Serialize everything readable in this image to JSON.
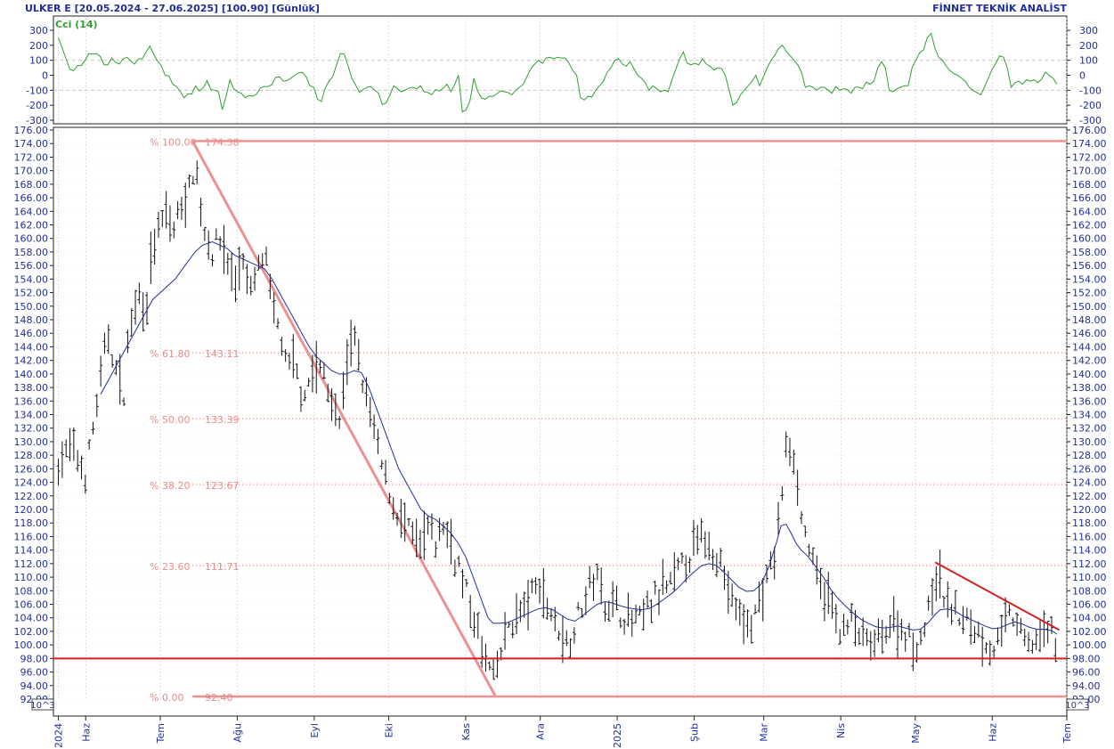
{
  "header": {
    "left": "ULKER E  [20.05.2024 - 27.06.2025]  [100.90]  [Günlük]",
    "right": "FİNNET TEKNİK ANALİST"
  },
  "indicator": {
    "label": "Cci (14)",
    "color": "#2ea12e",
    "ticks": [
      "300",
      "200",
      "100",
      "0",
      "-100",
      "-200",
      "-300"
    ],
    "tick_values": [
      300,
      200,
      100,
      0,
      -100,
      -200,
      -300
    ],
    "ylim": [
      -300,
      300
    ],
    "dashed_levels": [
      100,
      -100
    ],
    "values": [
      250,
      180,
      110,
      40,
      30,
      65,
      65,
      100,
      145,
      140,
      145,
      125,
      70,
      70,
      115,
      85,
      75,
      110,
      120,
      95,
      75,
      110,
      110,
      155,
      195,
      140,
      95,
      65,
      0,
      -5,
      -60,
      -75,
      -110,
      -150,
      -125,
      -125,
      -70,
      -105,
      -85,
      -35,
      -95,
      -100,
      -110,
      -230,
      -140,
      -30,
      -90,
      -110,
      -120,
      -150,
      -135,
      -140,
      -125,
      -85,
      -75,
      -75,
      -65,
      -15,
      -10,
      -40,
      -35,
      -20,
      0,
      15,
      20,
      -10,
      -70,
      -80,
      -160,
      -175,
      -85,
      -40,
      -10,
      70,
      145,
      140,
      65,
      -20,
      -65,
      -115,
      -95,
      -80,
      -75,
      -100,
      -120,
      -195,
      -185,
      -130,
      -70,
      -90,
      -110,
      -100,
      -85,
      -80,
      -90,
      -70,
      -110,
      -115,
      -130,
      -95,
      -105,
      -85,
      -60,
      -110,
      -60,
      0,
      -245,
      -230,
      -170,
      -20,
      -105,
      -150,
      -160,
      -140,
      -140,
      -125,
      -105,
      -110,
      -115,
      -130,
      -100,
      -80,
      -60,
      -5,
      45,
      75,
      100,
      80,
      115,
      120,
      110,
      120,
      115,
      115,
      80,
      30,
      0,
      -150,
      -165,
      -140,
      -145,
      -100,
      -70,
      -40,
      20,
      50,
      100,
      110,
      75,
      60,
      90,
      45,
      0,
      -20,
      -50,
      -100,
      -70,
      -90,
      -110,
      -100,
      -110,
      -30,
      40,
      110,
      155,
      80,
      70,
      80,
      70,
      110,
      75,
      60,
      35,
      50,
      45,
      0,
      -100,
      -200,
      -180,
      -130,
      -100,
      -70,
      -40,
      0,
      -70,
      -10,
      50,
      100,
      135,
      180,
      200,
      160,
      130,
      100,
      70,
      20,
      -80,
      -70,
      -80,
      -100,
      -80,
      -80,
      -100,
      -120,
      -75,
      -100,
      -90,
      -95,
      -120,
      -80,
      -80,
      -90,
      -45,
      -60,
      -40,
      50,
      90,
      50,
      -100,
      -110,
      -90,
      -80,
      -70,
      -70,
      50,
      100,
      150,
      170,
      250,
      280,
      180,
      120,
      100,
      60,
      30,
      10,
      0,
      -20,
      -40,
      -80,
      -100,
      -115,
      -130,
      -80,
      -20,
      40,
      80,
      130,
      120,
      50,
      -80,
      -50,
      -40,
      -60,
      -30,
      -40,
      -30,
      -50,
      -25,
      20,
      0,
      -20,
      -60
    ]
  },
  "price_axis": {
    "ticks": [
      "176.00",
      "174.00",
      "172.00",
      "170.00",
      "168.00",
      "166.00",
      "164.00",
      "162.00",
      "160.00",
      "158.00",
      "156.00",
      "154.00",
      "152.00",
      "150.00",
      "148.00",
      "146.00",
      "144.00",
      "142.00",
      "140.00",
      "138.00",
      "136.00",
      "134.00",
      "132.00",
      "130.00",
      "128.00",
      "126.00",
      "124.00",
      "122.00",
      "120.00",
      "118.00",
      "116.00",
      "114.00",
      "112.00",
      "110.00",
      "108.00",
      "106.00",
      "104.00",
      "102.00",
      "100.00",
      "98.00",
      "96.00",
      "94.00",
      "92.00"
    ],
    "scale_label": "10^3"
  },
  "time_axis": {
    "labels": [
      "2024",
      "Haz",
      "Tem",
      "Ağu",
      "Eyl",
      "Eki",
      "Kas",
      "Ara",
      "2025",
      "Şub",
      "Mar",
      "Nis",
      "May",
      "Haz",
      "Tem"
    ],
    "label_days": [
      0,
      11,
      41,
      72,
      103,
      133,
      164,
      194,
      225,
      256,
      284,
      315,
      345,
      376,
      406
    ]
  },
  "chart_data": {
    "type": "bar",
    "title": "ULKER E",
    "date_range": [
      "20.05.2024",
      "27.06.2025"
    ],
    "last_price": 100.9,
    "period": "Günlük",
    "ylim": [
      92,
      176
    ],
    "x_range_days": [
      -2,
      406
    ],
    "colors": {
      "price_bars": "#111111",
      "moving_average": "#1f2f9a",
      "fibonacci": "#ee9090",
      "support": "#d41f1f",
      "downtrend": "#d41f1f"
    },
    "price_path": [
      [
        0,
        127
      ],
      [
        5,
        129
      ],
      [
        11,
        125
      ],
      [
        14,
        132
      ],
      [
        17,
        139
      ],
      [
        20,
        146
      ],
      [
        23,
        141
      ],
      [
        26,
        136
      ],
      [
        29,
        148
      ],
      [
        32,
        152
      ],
      [
        35,
        150
      ],
      [
        38,
        158
      ],
      [
        41,
        162
      ],
      [
        44,
        163
      ],
      [
        47,
        161
      ],
      [
        50,
        166
      ],
      [
        53,
        167
      ],
      [
        55,
        172
      ],
      [
        58,
        162
      ],
      [
        62,
        158
      ],
      [
        65,
        160
      ],
      [
        68,
        157
      ],
      [
        71,
        153
      ],
      [
        74,
        158
      ],
      [
        77,
        151
      ],
      [
        80,
        155
      ],
      [
        83,
        158
      ],
      [
        86,
        149
      ],
      [
        89,
        147
      ],
      [
        92,
        140
      ],
      [
        95,
        142
      ],
      [
        98,
        137
      ],
      [
        101,
        139
      ],
      [
        104,
        141
      ],
      [
        107,
        140
      ],
      [
        110,
        136
      ],
      [
        113,
        132
      ],
      [
        116,
        142
      ],
      [
        119,
        145
      ],
      [
        122,
        140
      ],
      [
        125,
        135
      ],
      [
        128,
        130
      ],
      [
        131,
        125
      ],
      [
        134,
        122
      ],
      [
        137,
        119
      ],
      [
        140,
        117
      ],
      [
        143,
        116
      ],
      [
        146,
        114
      ],
      [
        149,
        117
      ],
      [
        152,
        115
      ],
      [
        155,
        118
      ],
      [
        158,
        115
      ],
      [
        161,
        112
      ],
      [
        164,
        108
      ],
      [
        167,
        104
      ],
      [
        170,
        100
      ],
      [
        173,
        97
      ],
      [
        175,
        95
      ],
      [
        178,
        98
      ],
      [
        181,
        103
      ],
      [
        184,
        104
      ],
      [
        187,
        105
      ],
      [
        190,
        107
      ],
      [
        193,
        109
      ],
      [
        196,
        107
      ],
      [
        199,
        104
      ],
      [
        202,
        102
      ],
      [
        205,
        100
      ],
      [
        208,
        103
      ],
      [
        211,
        106
      ],
      [
        214,
        109
      ],
      [
        217,
        110
      ],
      [
        220,
        107
      ],
      [
        223,
        106
      ],
      [
        226,
        105
      ],
      [
        229,
        104
      ],
      [
        232,
        103
      ],
      [
        235,
        104
      ],
      [
        238,
        106
      ],
      [
        241,
        107
      ],
      [
        244,
        108
      ],
      [
        247,
        109
      ],
      [
        250,
        111
      ],
      [
        253,
        113
      ],
      [
        256,
        114
      ],
      [
        259,
        116
      ],
      [
        262,
        115
      ],
      [
        265,
        114
      ],
      [
        268,
        110
      ],
      [
        271,
        107
      ],
      [
        274,
        104
      ],
      [
        277,
        103
      ],
      [
        280,
        104
      ],
      [
        283,
        107
      ],
      [
        286,
        110
      ],
      [
        289,
        114
      ],
      [
        291,
        122
      ],
      [
        293,
        128
      ],
      [
        295,
        130
      ],
      [
        297,
        127
      ],
      [
        299,
        119
      ],
      [
        302,
        115
      ],
      [
        305,
        110
      ],
      [
        308,
        108
      ],
      [
        311,
        106
      ],
      [
        314,
        103
      ],
      [
        317,
        102
      ],
      [
        320,
        104
      ],
      [
        323,
        101
      ],
      [
        326,
        100
      ],
      [
        329,
        100
      ],
      [
        332,
        102
      ],
      [
        335,
        103
      ],
      [
        338,
        103
      ],
      [
        341,
        102
      ],
      [
        344,
        100
      ],
      [
        347,
        101
      ],
      [
        350,
        104
      ],
      [
        353,
        110
      ],
      [
        355,
        109
      ],
      [
        358,
        106
      ],
      [
        361,
        105
      ],
      [
        364,
        104
      ],
      [
        367,
        103
      ],
      [
        370,
        102
      ],
      [
        373,
        101
      ],
      [
        376,
        99
      ],
      [
        379,
        101
      ],
      [
        382,
        104
      ],
      [
        385,
        104
      ],
      [
        388,
        101
      ],
      [
        391,
        100
      ],
      [
        394,
        101
      ],
      [
        397,
        102
      ],
      [
        400,
        102
      ],
      [
        402,
        101
      ]
    ],
    "moving_average_path": [
      [
        17,
        137
      ],
      [
        20,
        139
      ],
      [
        23,
        141
      ],
      [
        26,
        143
      ],
      [
        29,
        145
      ],
      [
        32,
        147
      ],
      [
        35,
        149
      ],
      [
        38,
        151
      ],
      [
        41,
        152
      ],
      [
        44,
        153
      ],
      [
        47,
        154
      ],
      [
        50,
        155.5
      ],
      [
        53,
        157
      ],
      [
        55,
        158
      ],
      [
        58,
        159
      ],
      [
        62,
        159.5
      ],
      [
        65,
        159
      ],
      [
        68,
        158.5
      ],
      [
        71,
        157.5
      ],
      [
        74,
        157
      ],
      [
        77,
        156.5
      ],
      [
        80,
        156
      ],
      [
        83,
        155.5
      ],
      [
        86,
        154
      ],
      [
        89,
        152
      ],
      [
        92,
        150
      ],
      [
        95,
        148
      ],
      [
        98,
        146
      ],
      [
        101,
        144
      ],
      [
        104,
        142.5
      ],
      [
        107,
        141.5
      ],
      [
        110,
        140.5
      ],
      [
        113,
        140
      ],
      [
        116,
        140
      ],
      [
        119,
        140.5
      ],
      [
        122,
        140.2
      ],
      [
        125,
        138
      ],
      [
        128,
        135
      ],
      [
        131,
        132
      ],
      [
        134,
        129
      ],
      [
        137,
        126
      ],
      [
        140,
        124
      ],
      [
        143,
        122
      ],
      [
        146,
        120
      ],
      [
        149,
        119
      ],
      [
        152,
        118.5
      ],
      [
        155,
        117.5
      ],
      [
        158,
        116.5
      ],
      [
        161,
        115
      ],
      [
        164,
        113
      ],
      [
        167,
        110
      ],
      [
        170,
        107
      ],
      [
        173,
        104
      ],
      [
        175,
        103.2
      ],
      [
        178,
        103.2
      ],
      [
        181,
        103.3
      ],
      [
        184,
        103.8
      ],
      [
        187,
        104.3
      ],
      [
        190,
        104.8
      ],
      [
        193,
        105.3
      ],
      [
        196,
        105.5
      ],
      [
        199,
        105.2
      ],
      [
        202,
        104.5
      ],
      [
        205,
        103.8
      ],
      [
        208,
        103.5
      ],
      [
        211,
        104.3
      ],
      [
        214,
        105.2
      ],
      [
        217,
        106
      ],
      [
        220,
        106.4
      ],
      [
        223,
        106.2
      ],
      [
        226,
        105.8
      ],
      [
        229,
        105.5
      ],
      [
        232,
        105.3
      ],
      [
        235,
        105.2
      ],
      [
        238,
        105.4
      ],
      [
        241,
        106
      ],
      [
        244,
        106.8
      ],
      [
        247,
        107.6
      ],
      [
        250,
        108.6
      ],
      [
        253,
        109.8
      ],
      [
        256,
        110.8
      ],
      [
        259,
        111.7
      ],
      [
        262,
        112
      ],
      [
        265,
        111.7
      ],
      [
        268,
        110.7
      ],
      [
        271,
        109.6
      ],
      [
        274,
        108.5
      ],
      [
        277,
        107.9
      ],
      [
        280,
        108
      ],
      [
        283,
        109
      ],
      [
        286,
        111.5
      ],
      [
        289,
        115
      ],
      [
        291,
        117.6
      ],
      [
        293,
        117.8
      ],
      [
        295,
        116.5
      ],
      [
        297,
        115
      ],
      [
        299,
        114
      ],
      [
        302,
        113
      ],
      [
        305,
        111.5
      ],
      [
        308,
        110
      ],
      [
        311,
        108.2
      ],
      [
        314,
        106.8
      ],
      [
        317,
        105.7
      ],
      [
        320,
        104.7
      ],
      [
        323,
        103.8
      ],
      [
        326,
        103.2
      ],
      [
        329,
        102.7
      ],
      [
        332,
        102.5
      ],
      [
        335,
        102.6
      ],
      [
        338,
        102.8
      ],
      [
        341,
        102.5
      ],
      [
        344,
        102.2
      ],
      [
        347,
        102.3
      ],
      [
        350,
        103.2
      ],
      [
        353,
        104.5
      ],
      [
        355,
        105.2
      ],
      [
        358,
        105.3
      ],
      [
        361,
        105
      ],
      [
        364,
        104.3
      ],
      [
        367,
        103.8
      ],
      [
        370,
        103.3
      ],
      [
        373,
        102.8
      ],
      [
        376,
        102.4
      ],
      [
        379,
        102.5
      ],
      [
        382,
        103
      ],
      [
        385,
        103.4
      ],
      [
        388,
        103.1
      ],
      [
        391,
        102.6
      ],
      [
        394,
        102.3
      ],
      [
        397,
        102.3
      ],
      [
        400,
        102.1
      ],
      [
        402,
        101.6
      ]
    ],
    "fibonacci": {
      "high": 174.38,
      "low": 92.4,
      "levels": [
        {
          "label": "% 100.00",
          "value": "174.38",
          "price": 174.38
        },
        {
          "label": "% 61.80",
          "value": "143.11",
          "price": 143.11
        },
        {
          "label": "% 50.00",
          "value": "133.39",
          "price": 133.39
        },
        {
          "label": "% 38.20",
          "value": "123.67",
          "price": 123.67
        },
        {
          "label": "% 23.60",
          "value": "111.71",
          "price": 111.71
        },
        {
          "label": "% 0.00",
          "value": "92.40",
          "price": 92.4
        }
      ],
      "start_day": 54,
      "retracement_line": [
        [
          54,
          174.38
        ],
        [
          176,
          92.4
        ]
      ]
    },
    "support_level": 98.0,
    "downtrend_line": [
      [
        353,
        112.2
      ],
      [
        403,
        102.2
      ]
    ]
  }
}
